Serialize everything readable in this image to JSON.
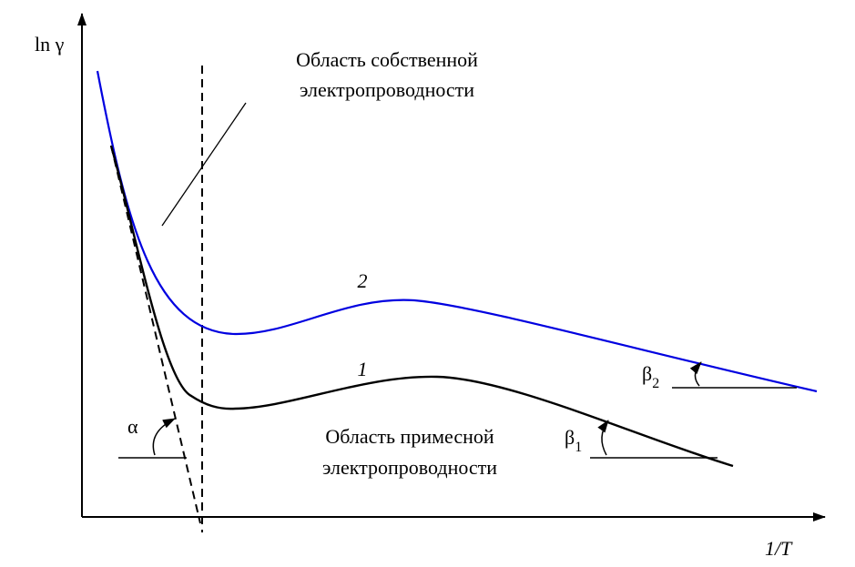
{
  "axes": {
    "y_label": "ln γ",
    "x_label": "1/T"
  },
  "regions": {
    "intrinsic": [
      "Область собственной",
      "электропроводности"
    ],
    "impurity": [
      "Область примесной",
      "электропроводности"
    ]
  },
  "curves": {
    "curve_1": "1",
    "curve_2": "2"
  },
  "angles": {
    "alpha": "α",
    "beta_1": {
      "symbol": "β",
      "subscript": "1"
    },
    "beta_2": {
      "symbol": "β",
      "subscript": "2"
    }
  }
}
